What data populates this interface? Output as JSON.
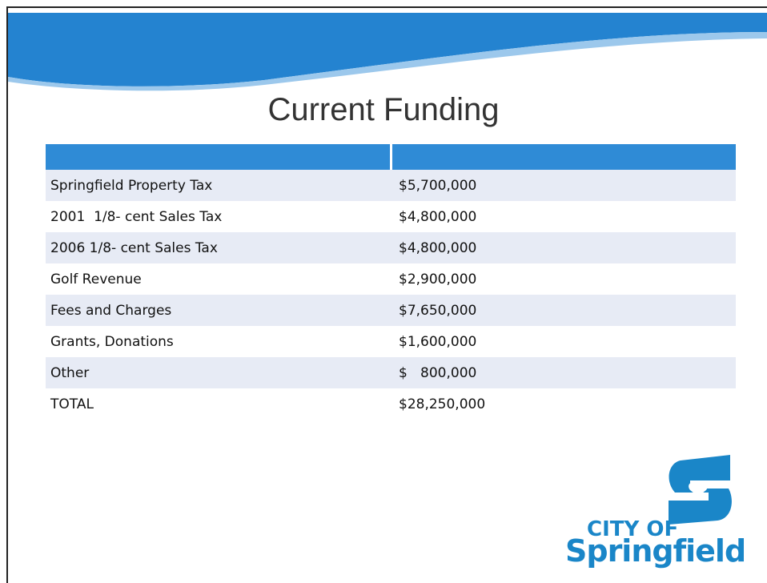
{
  "header": {
    "title": "Current Funding"
  },
  "table": {
    "rows": [
      [
        "Springfield Property Tax",
        "$5,700,000"
      ],
      [
        "2001  1/8- cent Sales Tax",
        "$4,800,000"
      ],
      [
        "2006 1/8- cent Sales Tax",
        "$4,800,000"
      ],
      [
        "Golf Revenue",
        "$2,900,000"
      ],
      [
        "Fees and Charges",
        "$7,650,000"
      ],
      [
        "Grants, Donations",
        "$1,600,000"
      ],
      [
        "Other",
        "$   800,000"
      ],
      [
        "TOTAL",
        "$28,250,000"
      ]
    ]
  },
  "logo": {
    "line1": "CITY OF",
    "line2": "Springfield"
  }
}
